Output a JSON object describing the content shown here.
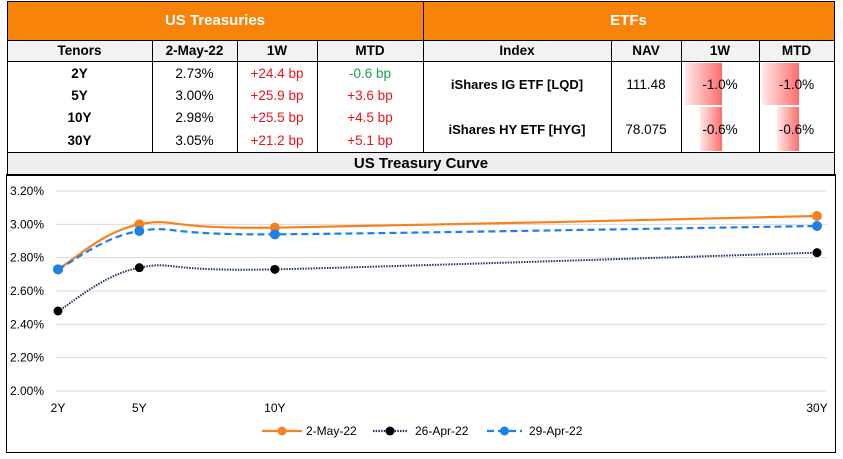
{
  "treasuries": {
    "title": "US Treasuries",
    "headers": [
      "Tenors",
      "2-May-22",
      "1W",
      "MTD"
    ],
    "rows": [
      {
        "tenor": "2Y",
        "yield": "2.73%",
        "w1": "+24.4 bp",
        "mtd": "-0.6 bp",
        "w1_dir": "up",
        "mtd_dir": "down"
      },
      {
        "tenor": "5Y",
        "yield": "3.00%",
        "w1": "+25.9 bp",
        "mtd": "+3.6 bp",
        "w1_dir": "up",
        "mtd_dir": "up"
      },
      {
        "tenor": "10Y",
        "yield": "2.98%",
        "w1": "+25.5 bp",
        "mtd": "+4.5 bp",
        "w1_dir": "up",
        "mtd_dir": "up"
      },
      {
        "tenor": "30Y",
        "yield": "3.05%",
        "w1": "+21.2 bp",
        "mtd": "+5.1 bp",
        "w1_dir": "up",
        "mtd_dir": "up"
      }
    ]
  },
  "etfs": {
    "title": "ETFs",
    "headers": [
      "Index",
      "NAV",
      "1W",
      "MTD"
    ],
    "rows": [
      {
        "index": "iShares IG ETF [LQD]",
        "nav": "111.48",
        "w1": "-1.0%",
        "mtd": "-1.0%",
        "w1_value": -1.0,
        "mtd_value": -1.0
      },
      {
        "index": "iShares HY ETF [HYG]",
        "nav": "78.075",
        "w1": "-0.6%",
        "mtd": "-0.6%",
        "w1_value": -0.6,
        "mtd_value": -0.6
      }
    ],
    "databar_min": -1.0
  },
  "colors": {
    "header_orange": "#F7830A",
    "positive_red": "#E8141B",
    "negative_green": "#19A24B",
    "series_2may": "#F5821F",
    "series_26apr": "#000000",
    "series_29apr": "#1E7FE8"
  },
  "chart_data": {
    "type": "line",
    "title": "US Treasury Curve",
    "xlabel": "",
    "ylabel": "",
    "x": [
      2,
      5,
      10,
      30
    ],
    "categories": [
      "2Y",
      "5Y",
      "10Y",
      "30Y"
    ],
    "ylim": [
      2.0,
      3.2
    ],
    "yticks": [
      "2.00%",
      "2.20%",
      "2.40%",
      "2.60%",
      "2.80%",
      "3.00%",
      "3.20%"
    ],
    "ytick_values": [
      2.0,
      2.2,
      2.4,
      2.6,
      2.8,
      3.0,
      3.2
    ],
    "grid": true,
    "legend_position": "bottom",
    "series": [
      {
        "name": "2-May-22",
        "values": [
          2.73,
          3.0,
          2.98,
          3.05
        ],
        "style": "solid",
        "smooth": true
      },
      {
        "name": "26-Apr-22",
        "values": [
          2.48,
          2.74,
          2.73,
          2.83
        ],
        "style": "dotted",
        "smooth": true
      },
      {
        "name": "29-Apr-22",
        "values": [
          2.73,
          2.96,
          2.94,
          2.99
        ],
        "style": "dashed",
        "smooth": true
      }
    ]
  }
}
